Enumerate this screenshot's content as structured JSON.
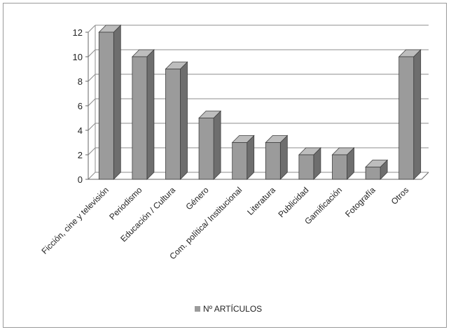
{
  "chart_data": {
    "type": "bar",
    "title": "",
    "xlabel": "",
    "ylabel": "",
    "categories": [
      "Ficción, cine y televisión",
      "Periodismo",
      "Educación / Cultura",
      "Género",
      "Com. política/ Institucional",
      "Literatura",
      "Publicidad",
      "Gamificación",
      "Fotografía",
      "Otros"
    ],
    "series": [
      {
        "name": "Nº ARTÍCULOS",
        "values": [
          12,
          10,
          9,
          5,
          3,
          3,
          2,
          2,
          1,
          10
        ]
      }
    ],
    "ylim": [
      0,
      12
    ],
    "yticks": [
      "0",
      "2",
      "4",
      "6",
      "8",
      "10",
      "12"
    ],
    "grid": true,
    "legend": "bottom",
    "colors": {
      "bar_front": "#9b9b9b",
      "bar_side": "#6e6e6e",
      "bar_top": "#bdbdbd",
      "gridline": "#8c8c8c",
      "legend_swatch": "#9b9b9b"
    }
  }
}
